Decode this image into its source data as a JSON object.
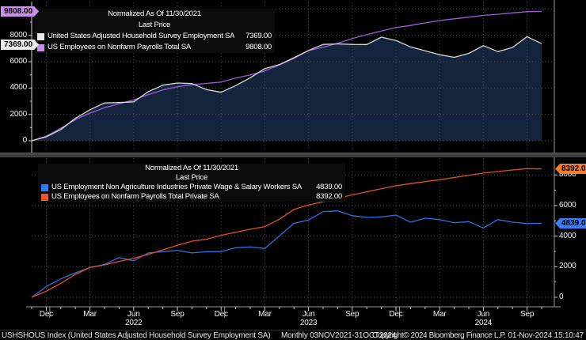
{
  "chart_data": [
    {
      "type": "line",
      "panel": "top",
      "title": "Normalized As Of 11/30/2021",
      "subtitle": "Last Price",
      "ylim": [
        0,
        10500
      ],
      "yticks": [
        0,
        2000,
        4000,
        6000,
        8000
      ],
      "ytick_labels": [
        "0",
        "2000",
        "4000",
        "6000",
        "8000"
      ],
      "extra_gridlines": [
        10000
      ],
      "axis_side": "left",
      "grid": true,
      "legend_position": "top-left-inside",
      "series": [
        {
          "name": "United States Adjusted Household Survey Employment SA",
          "last_label": "7369.00",
          "color": "#d8d8d8",
          "swatch_color": "#e8e8e8",
          "badge_color": "#ececec",
          "area_fill": "#14243c",
          "on_top": true,
          "values": [
            0,
            300,
            850,
            1700,
            2350,
            2870,
            2900,
            2950,
            3720,
            4220,
            4380,
            4340,
            3880,
            3680,
            4180,
            4780,
            5480,
            5780,
            6300,
            6850,
            7310,
            7350,
            7310,
            7300,
            7860,
            7610,
            7120,
            6820,
            6530,
            6330,
            6630,
            7220,
            6760,
            7080,
            7900,
            7369
          ]
        },
        {
          "name": "US Employees on Nonfarm Payrolls Total SA",
          "last_label": "9808.00",
          "color": "#9a5fd4",
          "swatch_color": "#c88fe8",
          "badge_color": "#c88fe8",
          "on_top": false,
          "values": [
            0,
            350,
            950,
            1600,
            2100,
            2500,
            2800,
            3100,
            3500,
            3850,
            4100,
            4250,
            4350,
            4450,
            4750,
            5000,
            5300,
            5750,
            6250,
            6840,
            7100,
            7400,
            7750,
            8050,
            8330,
            8590,
            8750,
            8940,
            9120,
            9250,
            9380,
            9510,
            9600,
            9700,
            9800,
            9808
          ]
        }
      ]
    },
    {
      "type": "line",
      "panel": "bottom",
      "title": "Normalized As Of 11/30/2021",
      "subtitle": "Last Price",
      "ylim": [
        0,
        9100
      ],
      "yticks": [
        0,
        2000,
        4000,
        6000,
        8000
      ],
      "ytick_labels": [
        "0",
        "2000",
        "4000",
        "6000",
        "8000"
      ],
      "extra_gridlines": [],
      "axis_side": "right",
      "grid": true,
      "legend_position": "top-left-inside",
      "series": [
        {
          "name": "US Employment Non Agriculture Industries Private Wage & Salary Workers SA",
          "last_label": "4839.00",
          "color": "#2f6fe0",
          "swatch_color": "#2e7bf0",
          "badge_color": "#3a7cf5",
          "on_top": false,
          "values": [
            0,
            700,
            1205,
            1600,
            1950,
            2150,
            2600,
            2380,
            2900,
            2980,
            3070,
            2900,
            2980,
            2980,
            3240,
            3290,
            3190,
            4010,
            4830,
            5050,
            5600,
            5650,
            5340,
            5220,
            5255,
            5375,
            4910,
            5170,
            5080,
            4875,
            4945,
            4530,
            5080,
            4910,
            4825,
            4839
          ]
        },
        {
          "name": "US Employees on Nonfarm Payrolls Total Private SA",
          "last_label": "8392.00",
          "color": "#e0512a",
          "swatch_color": "#e8582a",
          "badge_color": "#ef7d33",
          "on_top": true,
          "values": [
            0,
            400,
            915,
            1500,
            1950,
            2120,
            2350,
            2550,
            2800,
            3100,
            3400,
            3670,
            3800,
            4050,
            4250,
            4450,
            4620,
            5100,
            5740,
            6030,
            6250,
            6480,
            6690,
            6900,
            7100,
            7290,
            7430,
            7560,
            7685,
            7830,
            7980,
            8120,
            8220,
            8320,
            8410,
            8392
          ]
        }
      ]
    }
  ],
  "x_axis": {
    "months": [
      "Nov 2021",
      "Dec 2021",
      "Jan 2022",
      "Feb 2022",
      "Mar 2022",
      "Apr 2022",
      "May 2022",
      "Jun 2022",
      "Jul 2022",
      "Aug 2022",
      "Sep 2022",
      "Oct 2022",
      "Nov 2022",
      "Dec 2022",
      "Jan 2023",
      "Feb 2023",
      "Mar 2023",
      "Apr 2023",
      "May 2023",
      "Jun 2023",
      "Jul 2023",
      "Aug 2023",
      "Sep 2023",
      "Oct 2023",
      "Nov 2023",
      "Dec 2023",
      "Jan 2024",
      "Feb 2024",
      "Mar 2024",
      "Apr 2024",
      "May 2024",
      "Jun 2024",
      "Jul 2024",
      "Aug 2024",
      "Sep 2024",
      "Oct 2024"
    ],
    "tick_labels": [
      {
        "t": "Dec",
        "i": 1
      },
      {
        "t": "Mar",
        "i": 4
      },
      {
        "t": "Jun",
        "i": 7
      },
      {
        "t": "Sep",
        "i": 10
      },
      {
        "t": "Dec",
        "i": 13
      },
      {
        "t": "Mar",
        "i": 16
      },
      {
        "t": "Jun",
        "i": 19
      },
      {
        "t": "Sep",
        "i": 22
      },
      {
        "t": "Dec",
        "i": 25
      },
      {
        "t": "Mar",
        "i": 28
      },
      {
        "t": "Jun",
        "i": 31
      },
      {
        "t": "Sep",
        "i": 34
      }
    ],
    "year_labels": [
      {
        "t": "2022",
        "i": 7
      },
      {
        "t": "2023",
        "i": 19
      },
      {
        "t": "2024",
        "i": 31
      }
    ],
    "year_tick_indices": [
      1,
      13,
      25
    ]
  },
  "status_bar": {
    "instrument": "USHSHOUS Index (United States Adjusted Household Survey Employment SA)",
    "periodicity": "Monthly 03NOV2021-31OCT2024",
    "copyright": "Copyright© 2024 Bloomberg Finance L.P.",
    "timestamp": "01-Nov-2024 15:10:47"
  },
  "colors": {
    "background": "#000000",
    "gridline": "#4f4f4f",
    "axis_line": "#9a9a9a",
    "left_axis_line": "#d4d4d4",
    "tick": "#cfcfcf",
    "label_text": "#f2f2f2",
    "panel_separator": "#3f3f3f"
  }
}
